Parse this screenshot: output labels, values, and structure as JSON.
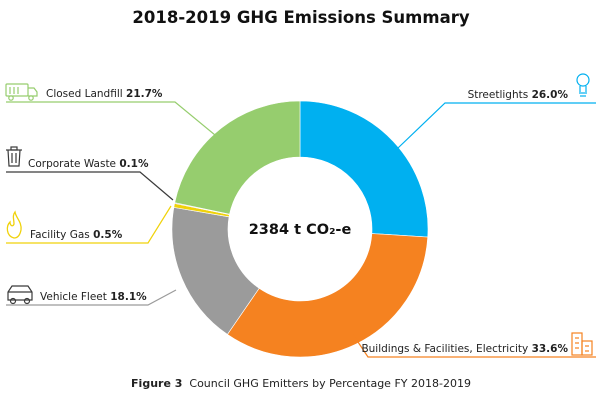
{
  "title": "2018-2019 GHG Emissions Summary",
  "caption": {
    "figure": "Figure 3",
    "text": "Council GHG Emitters by Percentage FY 2018-2019"
  },
  "center_label": "2384 t CO₂-e",
  "chart_data": {
    "type": "pie",
    "style": "donut",
    "title": "2018-2019 GHG Emissions Summary",
    "total_label": "2384 t CO₂-e",
    "slices": [
      {
        "label": "Streetlights",
        "value": 26.0,
        "display": "26.0%",
        "color": "#00b0f0",
        "icon": "lightbulb-icon"
      },
      {
        "label": "Buildings & Facilities, Electricity",
        "value": 33.6,
        "display": "33.6%",
        "color": "#f58220",
        "icon": "buildings-icon"
      },
      {
        "label": "Vehicle Fleet",
        "value": 18.1,
        "display": "18.1%",
        "color": "#9b9b9b",
        "icon": "car-icon"
      },
      {
        "label": "Facility Gas",
        "value": 0.5,
        "display": "0.5%",
        "color": "#f0d20a",
        "icon": "flame-icon"
      },
      {
        "label": "Corporate Waste",
        "value": 0.1,
        "display": "0.1%",
        "color": "#3a3a3a",
        "icon": "trash-bin-icon"
      },
      {
        "label": "Closed Landfill",
        "value": 21.7,
        "display": "21.7%",
        "color": "#96cd6e",
        "icon": "truck-icon"
      }
    ]
  }
}
